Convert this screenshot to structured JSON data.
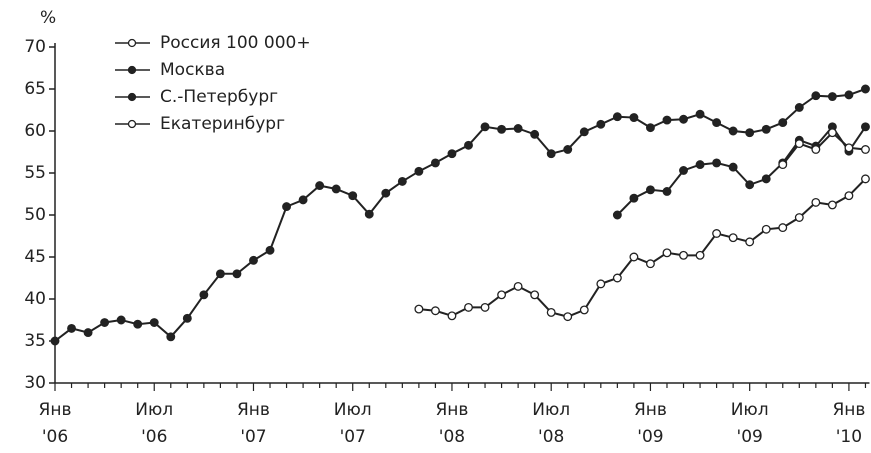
{
  "chart_data": {
    "type": "line",
    "y_label": "%",
    "categories": [
      "Янв '06",
      null,
      null,
      null,
      null,
      null,
      "Июл '06",
      null,
      null,
      null,
      null,
      null,
      "Янв '07",
      null,
      null,
      null,
      null,
      null,
      "Июл '07",
      null,
      null,
      null,
      null,
      null,
      "Янв '08",
      null,
      null,
      null,
      null,
      null,
      "Июл '08",
      null,
      null,
      null,
      null,
      null,
      "Янв '09",
      null,
      null,
      null,
      null,
      null,
      "Июл '09",
      null,
      null,
      null,
      null,
      null,
      "Янв '10",
      null
    ],
    "ylim": [
      30,
      70
    ],
    "yticks": [
      30,
      35,
      40,
      45,
      50,
      55,
      60,
      65,
      70
    ],
    "series": [
      {
        "name": "Россия 100 000+",
        "color": "#222222",
        "marker": "open",
        "values": [
          null,
          null,
          null,
          null,
          null,
          null,
          null,
          null,
          null,
          null,
          null,
          null,
          null,
          null,
          null,
          null,
          null,
          null,
          null,
          null,
          null,
          null,
          38.8,
          38.6,
          38.0,
          39.0,
          39.0,
          40.5,
          41.5,
          40.5,
          38.4,
          37.9,
          38.7,
          41.8,
          42.5,
          45.0,
          44.2,
          45.5,
          45.2,
          45.2,
          47.8,
          47.3,
          46.8,
          48.3,
          48.5,
          49.7,
          51.5,
          51.2,
          52.3,
          54.3
        ]
      },
      {
        "name": "Москва",
        "color": "#222222",
        "marker": "filled",
        "values": [
          35.0,
          36.5,
          36.0,
          37.2,
          37.5,
          37.0,
          37.2,
          35.5,
          37.7,
          40.5,
          43.0,
          43.0,
          44.6,
          45.8,
          51.0,
          51.8,
          53.5,
          53.1,
          52.3,
          50.1,
          52.6,
          54.0,
          55.2,
          56.2,
          57.3,
          58.3,
          60.5,
          60.2,
          60.3,
          59.6,
          57.3,
          57.8,
          59.9,
          60.8,
          61.7,
          61.6,
          60.4,
          61.3,
          61.4,
          62.0,
          61.0,
          60.0,
          59.8,
          60.2,
          61.0,
          62.8,
          64.2,
          64.1,
          64.3,
          65.0
        ]
      },
      {
        "name": "С.-Петербург",
        "color": "#222222",
        "marker": "filled",
        "values": [
          null,
          null,
          null,
          null,
          null,
          null,
          null,
          null,
          null,
          null,
          null,
          null,
          null,
          null,
          null,
          null,
          null,
          null,
          null,
          null,
          null,
          null,
          null,
          null,
          null,
          null,
          null,
          null,
          null,
          null,
          null,
          null,
          null,
          null,
          50.0,
          52.0,
          53.0,
          52.8,
          55.3,
          56.0,
          56.2,
          55.7,
          53.6,
          54.3,
          56.2,
          58.9,
          58.2,
          60.5,
          57.6,
          60.5
        ]
      },
      {
        "name": "Екатеринбург",
        "color": "#222222",
        "marker": "open",
        "values": [
          null,
          null,
          null,
          null,
          null,
          null,
          null,
          null,
          null,
          null,
          null,
          null,
          null,
          null,
          null,
          null,
          null,
          null,
          null,
          null,
          null,
          null,
          null,
          null,
          null,
          null,
          null,
          null,
          null,
          null,
          null,
          null,
          null,
          null,
          null,
          null,
          null,
          null,
          null,
          null,
          null,
          null,
          null,
          null,
          56.0,
          58.5,
          57.8,
          59.8,
          58.0,
          57.8
        ]
      }
    ]
  }
}
